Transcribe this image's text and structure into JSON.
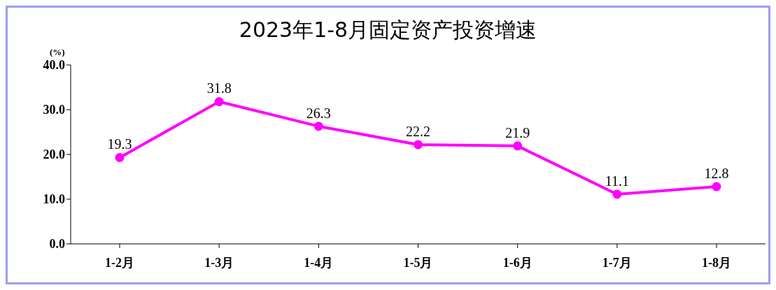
{
  "chart_data": {
    "type": "line",
    "title": "2023年1-8月固定资产投资增速",
    "ylabel": "(%)",
    "categories": [
      "1-2月",
      "1-3月",
      "1-4月",
      "1-5月",
      "1-6月",
      "1-7月",
      "1-8月"
    ],
    "series": [
      {
        "color": "#ff00ff",
        "values": [
          19.3,
          31.8,
          26.3,
          22.2,
          21.9,
          11.1,
          12.8
        ]
      }
    ],
    "ylim": [
      0,
      40
    ],
    "yticks": [
      {
        "value": 0,
        "label": "0.0"
      },
      {
        "value": 10,
        "label": "10.0"
      },
      {
        "value": 20,
        "label": "20.0"
      },
      {
        "value": 30,
        "label": "30.0"
      },
      {
        "value": 40,
        "label": "40.0"
      }
    ],
    "data_labels": true,
    "marker": "circle",
    "line_style": "solid"
  }
}
